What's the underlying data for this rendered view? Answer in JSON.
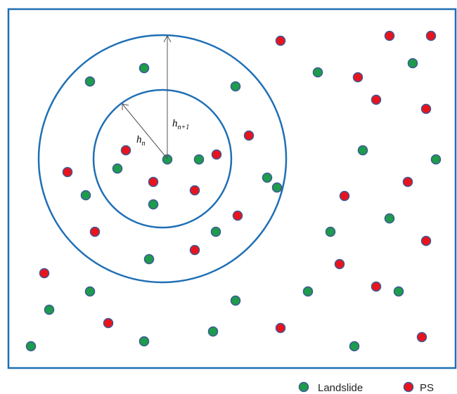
{
  "diagram": {
    "labels": {
      "inner_radius": {
        "base": "h",
        "sub": "n"
      },
      "outer_radius": {
        "base": "h",
        "sub": "n+1"
      }
    },
    "legend": [
      {
        "label": "Landslide",
        "color": "#1e9b4b"
      },
      {
        "label": "PS",
        "color": "#e8141c"
      }
    ],
    "colors": {
      "frame": "#1f6fb5",
      "circles": "#1f6fb5",
      "point_border": "#3b5998",
      "landslide": "#1e9b4b",
      "ps": "#e8141c",
      "arrow": "#555555"
    }
  }
}
